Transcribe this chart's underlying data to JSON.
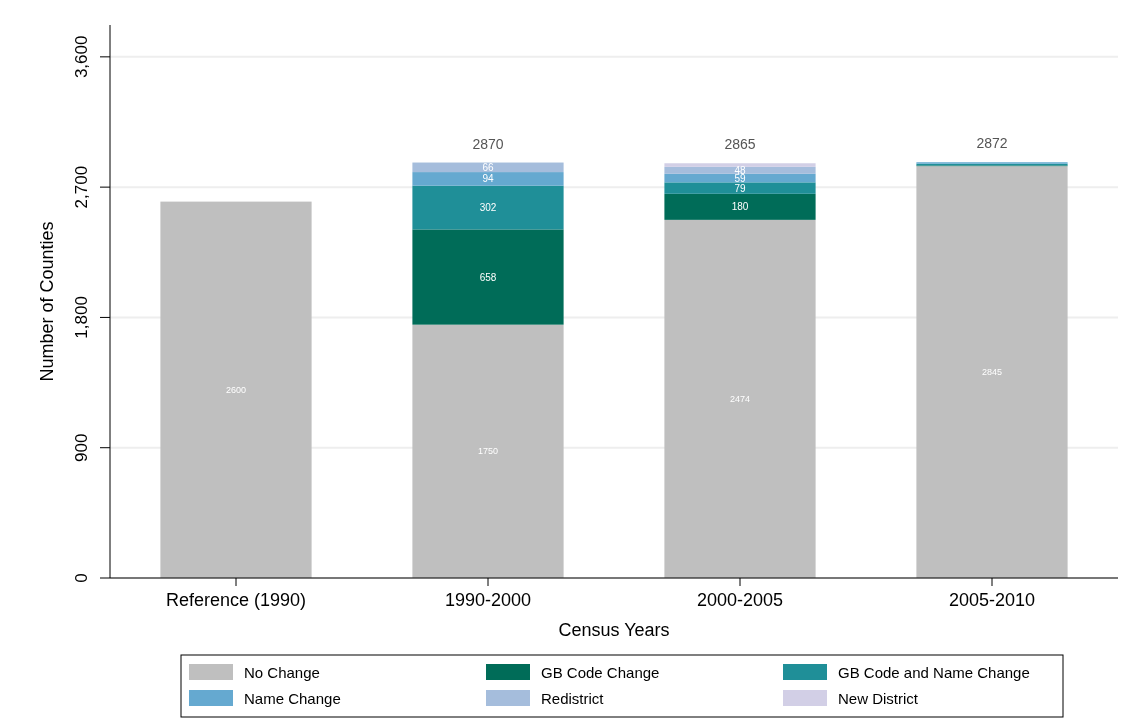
{
  "chart_data": {
    "type": "bar",
    "stacked": true,
    "xlabel": "Census Years",
    "ylabel": "Number of Counties",
    "categories": [
      "Reference (1990)",
      "1990-2000",
      "2000-2005",
      "2005-2010"
    ],
    "series": [
      {
        "name": "No Change",
        "color": "#bfbfbf",
        "values": [
          2600,
          1750,
          2474,
          2845
        ],
        "value_labels": [
          "2600",
          "1750",
          "2474",
          "2845"
        ]
      },
      {
        "name": "GB Code Change",
        "color": "#006c58",
        "values": [
          0,
          658,
          180,
          5
        ],
        "value_labels": [
          null,
          "658",
          "180",
          null
        ]
      },
      {
        "name": "GB Code and Name Change",
        "color": "#1f8f98",
        "values": [
          0,
          302,
          79,
          12
        ],
        "value_labels": [
          null,
          "302",
          "79",
          null
        ]
      },
      {
        "name": "Name Change",
        "color": "#65a9d0",
        "values": [
          0,
          94,
          59,
          10
        ],
        "value_labels": [
          null,
          "94",
          "59",
          null
        ]
      },
      {
        "name": "Redistrict",
        "color": "#a5bddc",
        "values": [
          0,
          66,
          48,
          0
        ],
        "value_labels": [
          null,
          "66",
          "48",
          null
        ]
      },
      {
        "name": "New District",
        "color": "#d2cfe6",
        "values": [
          0,
          0,
          25,
          0
        ],
        "value_labels": [
          null,
          null,
          null,
          null
        ]
      }
    ],
    "totals": [
      null,
      "2870",
      "2865",
      "2872"
    ],
    "ylim": [
      0,
      3820
    ],
    "yticks": [
      {
        "value": 0,
        "label": "0"
      },
      {
        "value": 900,
        "label": "900"
      },
      {
        "value": 1800,
        "label": "1,800"
      },
      {
        "value": 2700,
        "label": "2,700"
      },
      {
        "value": 3600,
        "label": "3,600"
      }
    ],
    "grid": "y",
    "legend": "bottom"
  }
}
